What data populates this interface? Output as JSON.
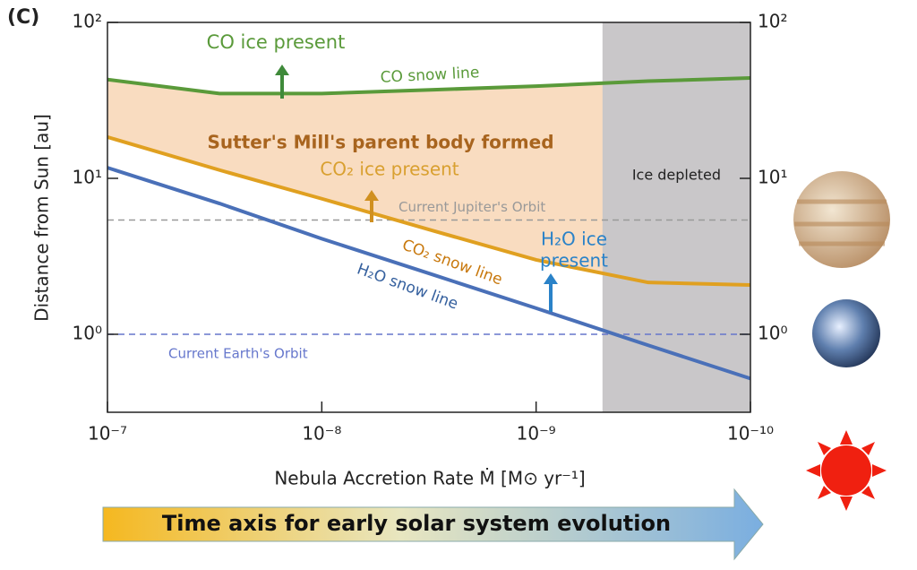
{
  "chart_data": {
    "type": "line",
    "panel_label": "(C)",
    "xlabel": "Nebula Accretion Rate  Ṁ  [M⊙ yr⁻¹]",
    "ylabel": "Distance from Sun  [au]",
    "x_scale": "log",
    "y_scale": "log",
    "x_reversed": true,
    "xlim": [
      1e-07,
      1e-10
    ],
    "ylim": [
      0.3162,
      100
    ],
    "xticks": [
      {
        "value": 1e-07,
        "label": "10⁻⁷"
      },
      {
        "value": 1e-08,
        "label": "10⁻⁸"
      },
      {
        "value": 1e-09,
        "label": "10⁻⁹"
      },
      {
        "value": 1e-10,
        "label": "10⁻¹⁰"
      }
    ],
    "yticks": [
      {
        "value": 1,
        "label": "10⁰"
      },
      {
        "value": 10,
        "label": "10¹"
      },
      {
        "value": 100,
        "label": "10²"
      }
    ],
    "x": [
      1e-07,
      3e-08,
      1e-08,
      3e-09,
      1e-09,
      3e-10,
      1e-10
    ],
    "series": [
      {
        "name": "CO snow line",
        "color": "#5a9a3a",
        "values": [
          43,
          35,
          35,
          37,
          39,
          42,
          44
        ]
      },
      {
        "name": "CO₂ snow line",
        "color": "#e0a020",
        "values": [
          18.4,
          11.3,
          7.4,
          4.6,
          3.0,
          2.15,
          2.07
        ]
      },
      {
        "name": "H₂O snow line",
        "color": "#4a70b8",
        "values": [
          11.7,
          6.9,
          4.1,
          2.4,
          1.47,
          0.85,
          0.52
        ]
      }
    ],
    "fill_between": {
      "color": "#f9dcc0"
    },
    "hlines": [
      {
        "value": 5.4,
        "label": "Current Jupiter's Orbit",
        "color": "#999999"
      },
      {
        "value": 1,
        "label": "Current Earth's Orbit",
        "color": "#6677cc"
      }
    ],
    "shaded": {
      "x": [
        4.9e-10,
        1e-10
      ],
      "label": "Ice depleted",
      "color": "#c9c7c9"
    },
    "annotations": [
      {
        "text": "CO ice present",
        "color": "#5a9a3a"
      },
      {
        "text": "Sutter's Mill's parent body formed",
        "color": "#a8641e"
      },
      {
        "text": "CO₂ ice present",
        "color": "#d9a030"
      },
      {
        "text": "H₂O ice",
        "color": "#2a82c8"
      },
      {
        "text": "present",
        "color": "#2a82c8"
      }
    ],
    "time_arrow": "Time axis for early solar system evolution"
  }
}
